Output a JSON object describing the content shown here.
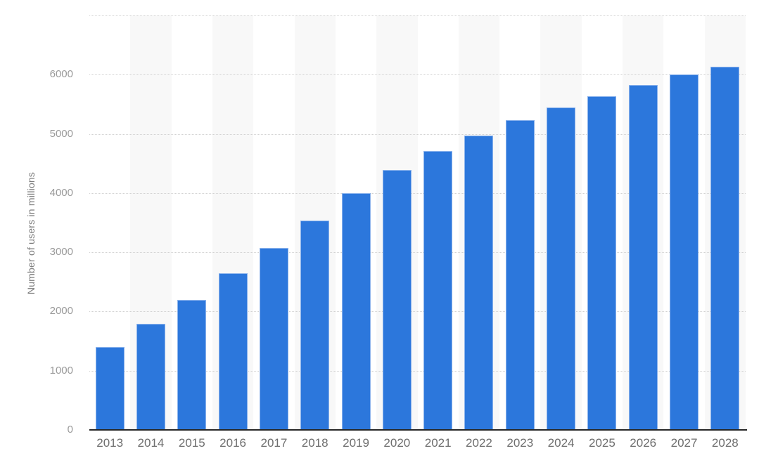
{
  "chart_data": {
    "type": "bar",
    "title": "",
    "xlabel": "",
    "ylabel": "Number of users in millions",
    "categories": [
      "2013",
      "2014",
      "2015",
      "2016",
      "2017",
      "2018",
      "2019",
      "2020",
      "2021",
      "2022",
      "2023",
      "2024",
      "2025",
      "2026",
      "2027",
      "2028"
    ],
    "values": [
      1400,
      1790,
      2190,
      2650,
      3070,
      3540,
      4000,
      4390,
      4710,
      4970,
      5230,
      5450,
      5640,
      5830,
      6000,
      6140
    ],
    "ylim": [
      0,
      7000
    ],
    "ytick_interval": 1000,
    "ytick_labels": [
      "0",
      "1000",
      "2000",
      "3000",
      "4000",
      "5000",
      "6000"
    ],
    "grid": "horizontal-dotted",
    "legend": "none",
    "band_pattern": "alternating columns shaded on even years",
    "colors": {
      "bar": "#2c77dc",
      "bar_edge": "#8ab2ec",
      "band": "#f8f8f8",
      "gridline": "#d2d2d2",
      "axis_line": "#262626",
      "ytick_text": "#9a9a9a",
      "xtick_text": "#6e6e6e",
      "ylabel_text": "#7b7b7b",
      "background": "#ffffff"
    }
  }
}
